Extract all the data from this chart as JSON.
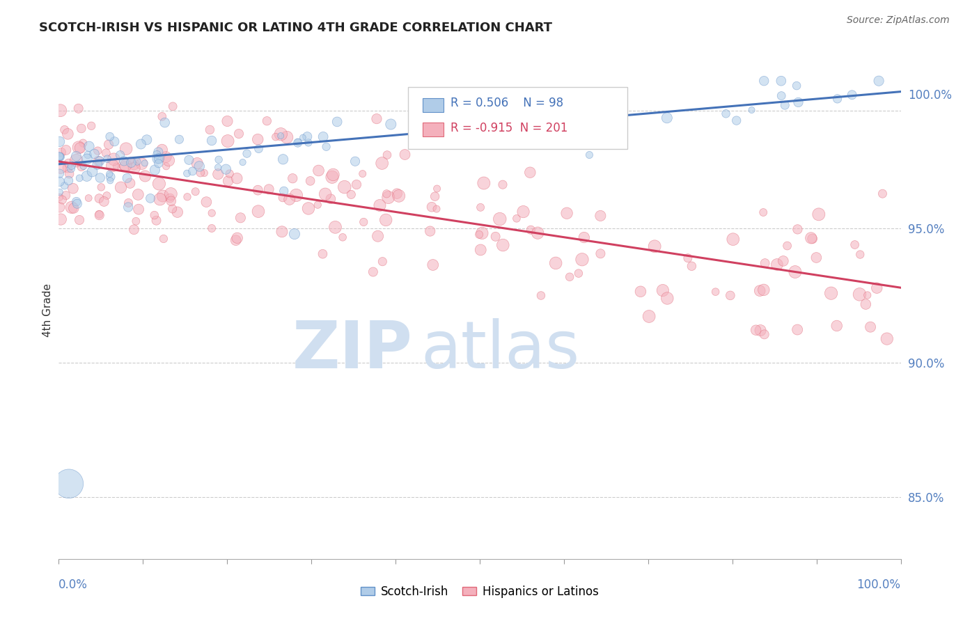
{
  "title": "SCOTCH-IRISH VS HISPANIC OR LATINO 4TH GRADE CORRELATION CHART",
  "source": "Source: ZipAtlas.com",
  "ylabel": "4th Grade",
  "ytick_labels": [
    "85.0%",
    "90.0%",
    "95.0%",
    "100.0%"
  ],
  "ytick_values": [
    0.85,
    0.9,
    0.95,
    1.0
  ],
  "xmin": 0.0,
  "xmax": 1.0,
  "ymin": 0.827,
  "ymax": 1.012,
  "blue_R": 0.506,
  "blue_N": 98,
  "pink_R": -0.915,
  "pink_N": 201,
  "blue_color": "#b0cce8",
  "blue_edge_color": "#6090c8",
  "pink_color": "#f4b0bc",
  "pink_edge_color": "#e06878",
  "blue_trend_start_x": 0.0,
  "blue_trend_start_y": 0.974,
  "blue_trend_end_x": 1.0,
  "blue_trend_end_y": 1.001,
  "pink_trend_start_x": 0.0,
  "pink_trend_start_y": 0.975,
  "pink_trend_end_x": 1.0,
  "pink_trend_end_y": 0.928,
  "watermark_zip": "ZIP",
  "watermark_atlas": "atlas",
  "watermark_color": "#d0dff0",
  "legend_blue_label": "Scotch-Irish",
  "legend_pink_label": "Hispanics or Latinos",
  "dashed_line_y": 0.994,
  "dashed_line_y2": 0.95,
  "dashed_line_y3": 0.9,
  "dashed_line_y4": 0.85,
  "background_color": "#ffffff",
  "blue_line_color": "#4472b8",
  "pink_line_color": "#d04060"
}
